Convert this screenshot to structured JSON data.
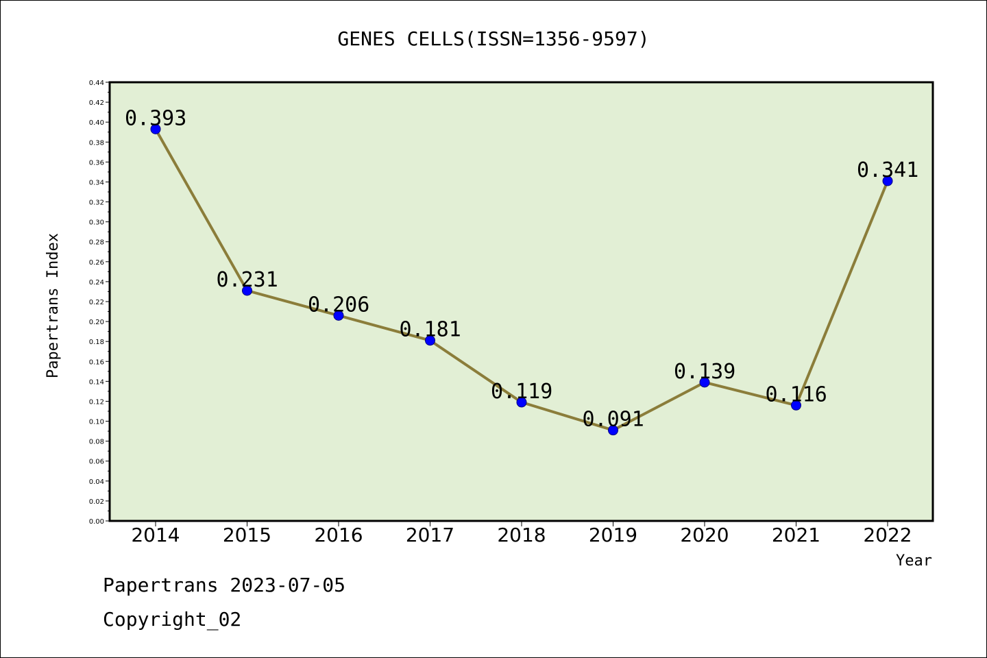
{
  "chart_data": {
    "type": "line",
    "title": "GENES CELLS(ISSN=1356-9597)",
    "xlabel": "Year",
    "ylabel": "Papertrans Index",
    "categories": [
      "2014",
      "2015",
      "2016",
      "2017",
      "2018",
      "2019",
      "2020",
      "2021",
      "2022"
    ],
    "values": [
      0.393,
      0.231,
      0.206,
      0.181,
      0.119,
      0.091,
      0.139,
      0.116,
      0.341
    ],
    "value_labels": [
      "0.393",
      "0.231",
      "0.206",
      "0.181",
      "0.119",
      "0.091",
      "0.139",
      "0.116",
      "0.341"
    ],
    "ylim": [
      0,
      0.44
    ],
    "ytick_labels": [
      "0.00",
      "0.02",
      "0.04",
      "0.06",
      "0.08",
      "0.10",
      "0.12",
      "0.14",
      "0.16",
      "0.18",
      "0.20",
      "0.22",
      "0.24",
      "0.26",
      "0.28",
      "0.30",
      "0.32",
      "0.34",
      "0.36",
      "0.38",
      "0.40",
      "0.42",
      "0.44"
    ],
    "grid": false,
    "colors": {
      "plot_background": "#e2efd5",
      "line": "#8b7d3a",
      "marker": "#0000ff",
      "marker_edge": "#000080"
    }
  },
  "footer": {
    "line1": "Papertrans 2023-07-05",
    "line2": "Copyright_02"
  }
}
